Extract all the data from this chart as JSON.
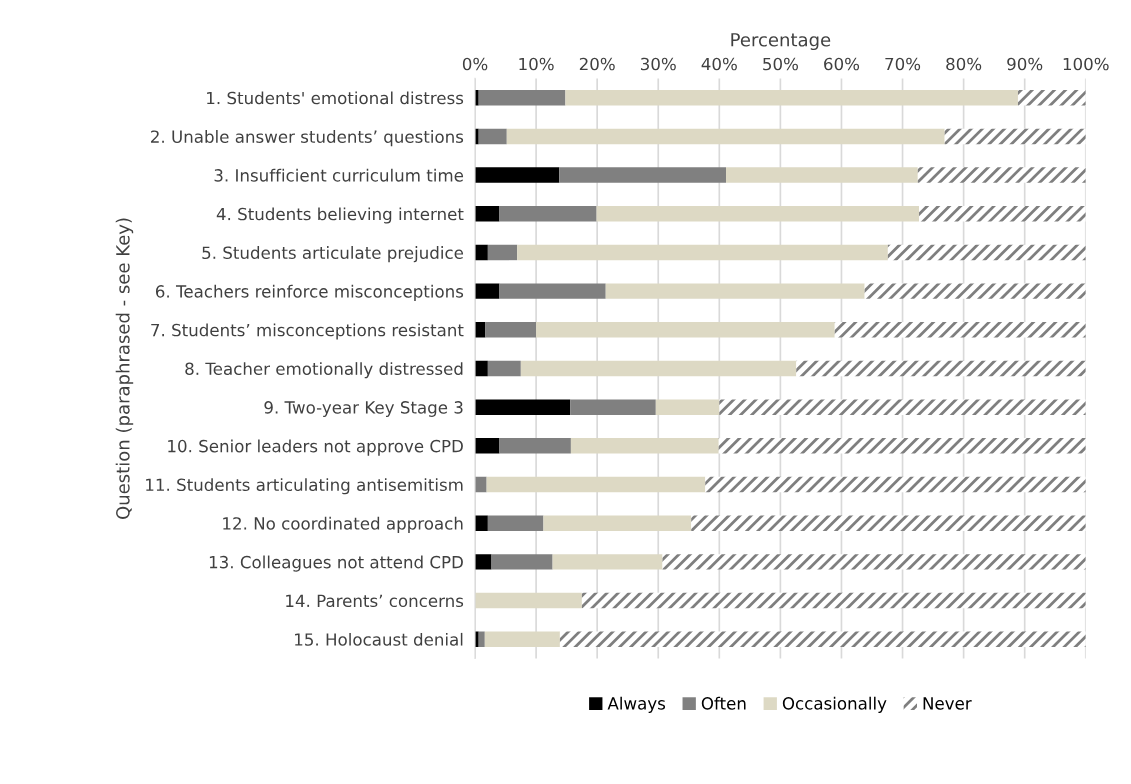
{
  "chart_data": {
    "type": "bar",
    "orientation": "horizontal",
    "stacked": true,
    "xlabel": "Percentage",
    "ylabel": "Question (paraphrased - see Key)",
    "categories": [
      "1. Students' emotional distress",
      "2. Unable answer students’ questions",
      "3. Insufficient curriculum time",
      "4. Students believing internet",
      "5. Students articulate prejudice",
      "6. Teachers reinforce misconceptions",
      "7. Students’ misconceptions resistant",
      "8. Teacher emotionally distressed",
      "9. Two-year Key Stage 3",
      "10. Senior leaders not approve CPD",
      "11. Students articulating antisemitism",
      "12. No coordinated approach",
      "13. Colleagues not attend CPD",
      "14. Parents’ concerns",
      "15. Holocaust denial"
    ],
    "series": [
      {
        "name": "Always",
        "color": "#000000",
        "values": [
          0.6,
          0.6,
          13.8,
          4.0,
          2.1,
          4.0,
          1.7,
          2.1,
          15.6,
          4.0,
          0,
          2.1,
          2.7,
          0,
          0.6
        ]
      },
      {
        "name": "Often",
        "color": "#808080",
        "values": [
          14.2,
          4.6,
          27.3,
          15.9,
          4.8,
          17.4,
          8.3,
          5.4,
          14.0,
          11.7,
          1.9,
          9.1,
          10.0,
          0,
          1.0
        ]
      },
      {
        "name": "Occasionally",
        "color": "#ddd9c4",
        "values": [
          74.1,
          71.7,
          31.4,
          52.8,
          60.7,
          42.4,
          48.9,
          45.1,
          10.4,
          24.2,
          35.8,
          24.2,
          18.0,
          17.5,
          12.3
        ]
      },
      {
        "name": "Never",
        "color": "#7f7f7f",
        "values": [
          11.1,
          23.1,
          27.5,
          27.3,
          32.4,
          36.2,
          41.1,
          47.4,
          60.0,
          60.1,
          62.3,
          64.6,
          69.3,
          82.5,
          86.1
        ]
      }
    ],
    "xlim": [
      0,
      100
    ],
    "xticks": [
      {
        "value": 0,
        "label": "0%"
      },
      {
        "value": 10,
        "label": "10%"
      },
      {
        "value": 20,
        "label": "20%"
      },
      {
        "value": 30,
        "label": "30%"
      },
      {
        "value": 40,
        "label": "40%"
      },
      {
        "value": 50,
        "label": "50%"
      },
      {
        "value": 60,
        "label": "60%"
      },
      {
        "value": 70,
        "label": "70%"
      },
      {
        "value": 80,
        "label": "80%"
      },
      {
        "value": 90,
        "label": "90%"
      },
      {
        "value": 100,
        "label": "100%"
      }
    ],
    "grid": "x",
    "legend": "bottom"
  }
}
